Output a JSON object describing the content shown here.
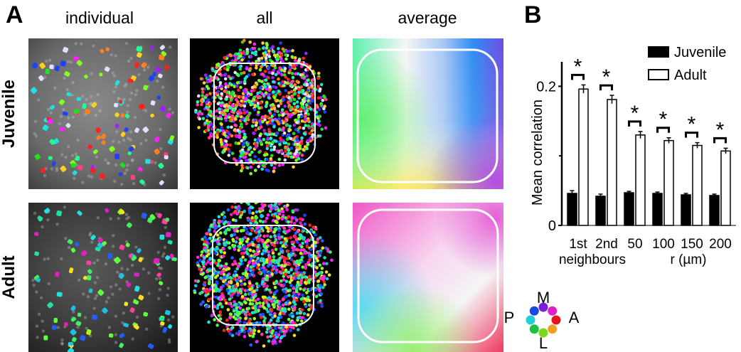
{
  "panel_a": {
    "letter": "A",
    "columns": [
      "individual",
      "all",
      "average"
    ],
    "rows": [
      "Juvenile",
      "Adult"
    ]
  },
  "panel_b": {
    "letter": "B"
  },
  "chart_data": {
    "type": "bar",
    "title": "",
    "xlabel": "",
    "ylabel": "Mean correlation",
    "ylim": [
      0,
      0.23
    ],
    "yticks": [
      0,
      0.2
    ],
    "yticks_labels": [
      "0",
      "0.2"
    ],
    "categories": [
      "1st",
      "2nd",
      "50",
      "100",
      "150",
      "200"
    ],
    "category_groups": [
      {
        "label": "neighbours",
        "members": [
          "1st",
          "2nd"
        ]
      },
      {
        "label": "r (µm)",
        "members": [
          "50",
          "100",
          "150",
          "200"
        ]
      }
    ],
    "series": [
      {
        "name": "Juvenile",
        "fill": "#000000",
        "values": [
          0.046,
          0.042,
          0.047,
          0.046,
          0.044,
          0.043
        ],
        "errors": [
          0.004,
          0.003,
          0.002,
          0.002,
          0.002,
          0.002
        ]
      },
      {
        "name": "Adult",
        "fill": "#ffffff",
        "values": [
          0.196,
          0.181,
          0.13,
          0.122,
          0.115,
          0.107
        ],
        "errors": [
          0.006,
          0.006,
          0.005,
          0.004,
          0.004,
          0.004
        ]
      }
    ],
    "significance": [
      "*",
      "*",
      "*",
      "*",
      "*",
      "*"
    ],
    "legend_position": "top-right"
  },
  "compass": {
    "labels": {
      "top": "M",
      "left": "P",
      "right": "A",
      "bottom": "L"
    },
    "dot_colors": [
      "#7a1fd8",
      "#e020c8",
      "#e8141c",
      "#f0a020",
      "#7ad820",
      "#20c040",
      "#20d0d8",
      "#1848e0"
    ]
  }
}
